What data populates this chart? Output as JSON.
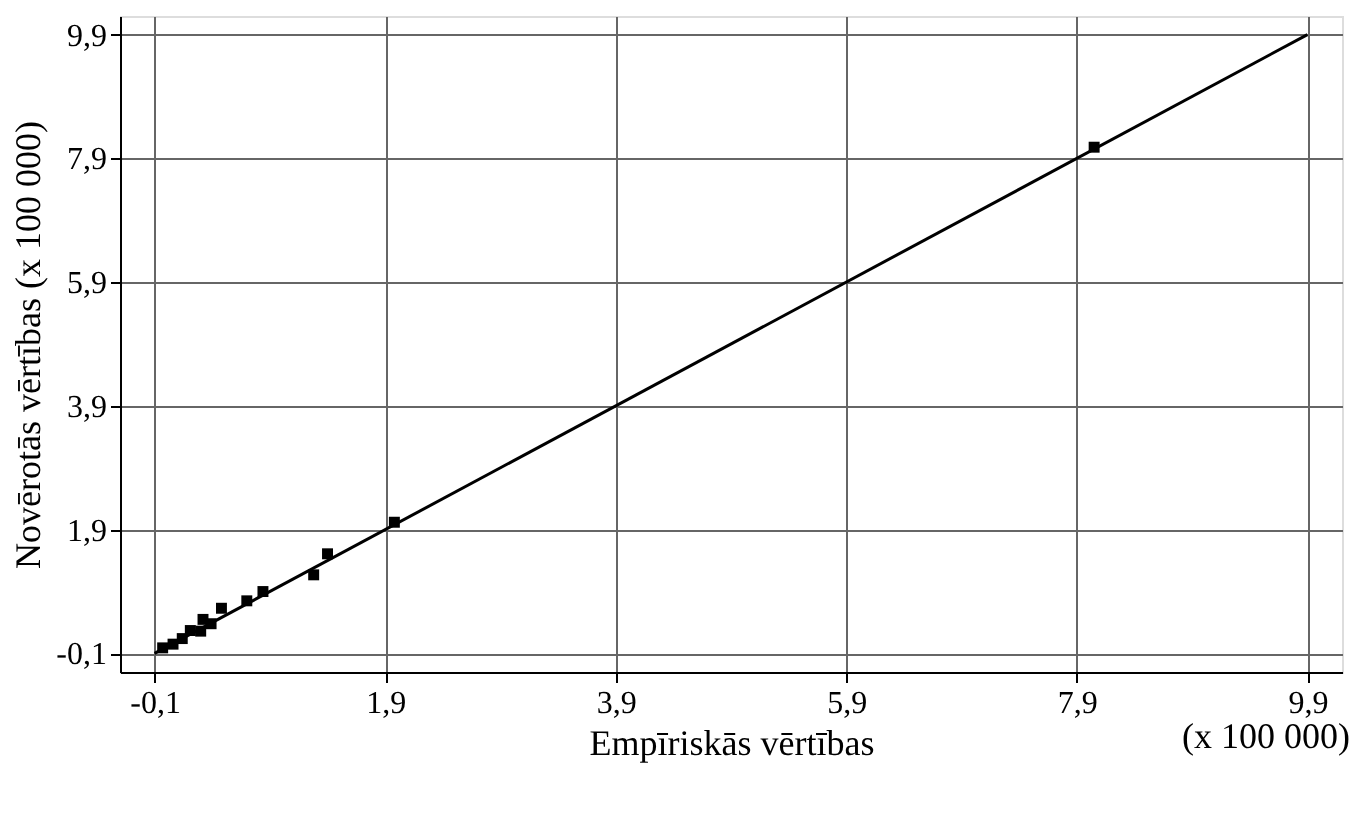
{
  "chart_data": {
    "type": "scatter",
    "xlabel": "Empīriskās vērtības",
    "ylabel": "Novērotās vērtības   (x 100 000)",
    "annotations": [
      "(x 100 000)"
    ],
    "xlim": [
      -0.4,
      10.2
    ],
    "ylim": [
      -0.4,
      10.2
    ],
    "xticks": [
      {
        "value": -0.1,
        "label": "-0,1"
      },
      {
        "value": 1.9,
        "label": "1,9"
      },
      {
        "value": 3.9,
        "label": "3,9"
      },
      {
        "value": 5.9,
        "label": "5,9"
      },
      {
        "value": 7.9,
        "label": "7,9"
      },
      {
        "value": 9.9,
        "label": "9,9"
      }
    ],
    "yticks": [
      {
        "value": -0.1,
        "label": "-0,1"
      },
      {
        "value": 1.9,
        "label": "1,9"
      },
      {
        "value": 3.9,
        "label": "3,9"
      },
      {
        "value": 5.9,
        "label": "5,9"
      },
      {
        "value": 7.9,
        "label": "7,9"
      },
      {
        "value": 9.9,
        "label": "9,9"
      }
    ],
    "grid": true,
    "series": [
      {
        "marker": "square",
        "color": "#000000",
        "x": [
          -0.03,
          0.06,
          0.14,
          0.21,
          0.3,
          0.32,
          0.39,
          0.48,
          0.7,
          0.84,
          1.28,
          1.4,
          1.98,
          8.05
        ],
        "values": [
          -0.01,
          0.05,
          0.14,
          0.27,
          0.26,
          0.45,
          0.38,
          0.63,
          0.75,
          0.9,
          1.17,
          1.51,
          2.02,
          8.08
        ]
      },
      {
        "type": "line",
        "color": "#000000",
        "x": [
          -0.1,
          9.9
        ],
        "values": [
          -0.1,
          9.9
        ]
      }
    ]
  }
}
